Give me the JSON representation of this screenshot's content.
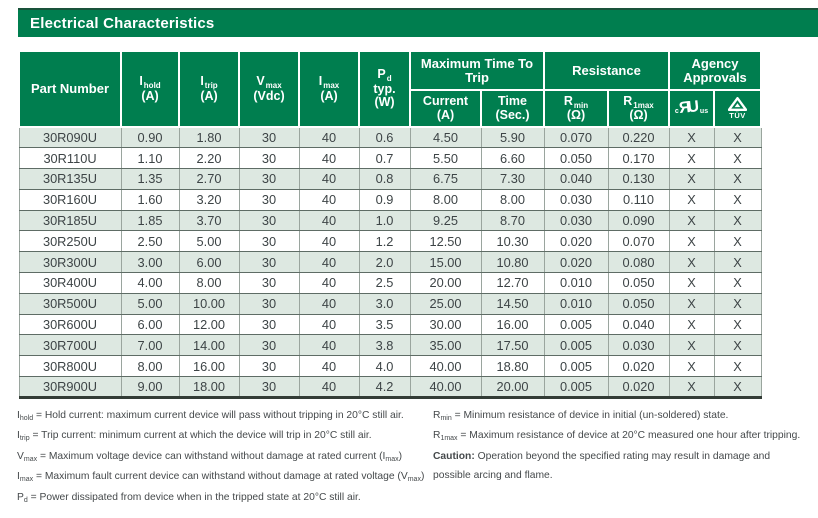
{
  "title": "Electrical Characteristics",
  "colors": {
    "brand_green": "#007e4f",
    "row_alt": "#dde8e1"
  },
  "table": {
    "headers": {
      "part": "Part Number",
      "cols": [
        {
          "sym": "I",
          "sub": "hold",
          "unit": "(A)"
        },
        {
          "sym": "I",
          "sub": "trip",
          "unit": "(A)"
        },
        {
          "sym": "V",
          "sub": "max",
          "unit": "(Vdc)"
        },
        {
          "sym": "I",
          "sub": "max",
          "unit": "(A)"
        },
        {
          "sym": "P",
          "sub": "d",
          "line2": "typ.",
          "unit": "(W)"
        }
      ],
      "groups": [
        {
          "label": "Maximum Time To Trip"
        },
        {
          "label": "Resistance"
        },
        {
          "label": "Agency Approvals"
        }
      ],
      "subcols": [
        {
          "line1": "Current",
          "unit": "(A)"
        },
        {
          "line1": "Time",
          "unit": "(Sec.)"
        },
        {
          "sym": "R",
          "sub": "min",
          "unit": "(Ω)"
        },
        {
          "sym": "R",
          "sub": "1max",
          "unit": "(Ω)"
        }
      ],
      "ul_mark": {
        "c": "c",
        "r": "R",
        "u": "U",
        "us": "us"
      },
      "tuv_mark": {
        "label": "TÜV"
      }
    },
    "rows": [
      [
        "30R090U",
        "0.90",
        "1.80",
        "30",
        "40",
        "0.6",
        "4.50",
        "5.90",
        "0.070",
        "0.220",
        "X",
        "X"
      ],
      [
        "30R110U",
        "1.10",
        "2.20",
        "30",
        "40",
        "0.7",
        "5.50",
        "6.60",
        "0.050",
        "0.170",
        "X",
        "X"
      ],
      [
        "30R135U",
        "1.35",
        "2.70",
        "30",
        "40",
        "0.8",
        "6.75",
        "7.30",
        "0.040",
        "0.130",
        "X",
        "X"
      ],
      [
        "30R160U",
        "1.60",
        "3.20",
        "30",
        "40",
        "0.9",
        "8.00",
        "8.00",
        "0.030",
        "0.110",
        "X",
        "X"
      ],
      [
        "30R185U",
        "1.85",
        "3.70",
        "30",
        "40",
        "1.0",
        "9.25",
        "8.70",
        "0.030",
        "0.090",
        "X",
        "X"
      ],
      [
        "30R250U",
        "2.50",
        "5.00",
        "30",
        "40",
        "1.2",
        "12.50",
        "10.30",
        "0.020",
        "0.070",
        "X",
        "X"
      ],
      [
        "30R300U",
        "3.00",
        "6.00",
        "30",
        "40",
        "2.0",
        "15.00",
        "10.80",
        "0.020",
        "0.080",
        "X",
        "X"
      ],
      [
        "30R400U",
        "4.00",
        "8.00",
        "30",
        "40",
        "2.5",
        "20.00",
        "12.70",
        "0.010",
        "0.050",
        "X",
        "X"
      ],
      [
        "30R500U",
        "5.00",
        "10.00",
        "30",
        "40",
        "3.0",
        "25.00",
        "14.50",
        "0.010",
        "0.050",
        "X",
        "X"
      ],
      [
        "30R600U",
        "6.00",
        "12.00",
        "30",
        "40",
        "3.5",
        "30.00",
        "16.00",
        "0.005",
        "0.040",
        "X",
        "X"
      ],
      [
        "30R700U",
        "7.00",
        "14.00",
        "30",
        "40",
        "3.8",
        "35.00",
        "17.50",
        "0.005",
        "0.030",
        "X",
        "X"
      ],
      [
        "30R800U",
        "8.00",
        "16.00",
        "30",
        "40",
        "4.0",
        "40.00",
        "18.80",
        "0.005",
        "0.020",
        "X",
        "X"
      ],
      [
        "30R900U",
        "9.00",
        "18.00",
        "30",
        "40",
        "4.2",
        "40.00",
        "20.00",
        "0.005",
        "0.020",
        "X",
        "X"
      ]
    ]
  },
  "footnotes": {
    "left": [
      [
        {
          "t": "I"
        },
        {
          "t": "hold",
          "sub": 1
        },
        {
          "t": " = Hold current: maximum current device will pass without tripping in 20°C still air."
        }
      ],
      [
        {
          "t": "I"
        },
        {
          "t": "trip",
          "sub": 1
        },
        {
          "t": " = Trip current: minimum current at which the device will trip in 20°C still air."
        }
      ],
      [
        {
          "t": "V"
        },
        {
          "t": "max",
          "sub": 1
        },
        {
          "t": " = Maximum voltage device can withstand without damage at rated current (I"
        },
        {
          "t": "max",
          "sub": 1
        },
        {
          "t": ")"
        }
      ],
      [
        {
          "t": "I"
        },
        {
          "t": "max",
          "sub": 1
        },
        {
          "t": " = Maximum fault current device can withstand without damage at rated voltage (V"
        },
        {
          "t": "max",
          "sub": 1
        },
        {
          "t": ")"
        }
      ],
      [
        {
          "t": "P"
        },
        {
          "t": "d",
          "sub": 1
        },
        {
          "t": " = Power dissipated from device when in the tripped state at 20°C still air."
        }
      ]
    ],
    "right": [
      [
        {
          "t": "R"
        },
        {
          "t": "min",
          "sub": 1
        },
        {
          "t": " = Minimum resistance of device in initial (un-soldered) state."
        }
      ],
      [
        {
          "t": "R"
        },
        {
          "t": "1max",
          "sub": 1
        },
        {
          "t": " = Maximum resistance of device at 20°C measured one hour after tripping."
        }
      ],
      [
        {
          "t": "Caution:",
          "bold": 1
        },
        {
          "t": " Operation beyond the specified rating may result in damage and possible arcing and flame."
        }
      ]
    ]
  }
}
